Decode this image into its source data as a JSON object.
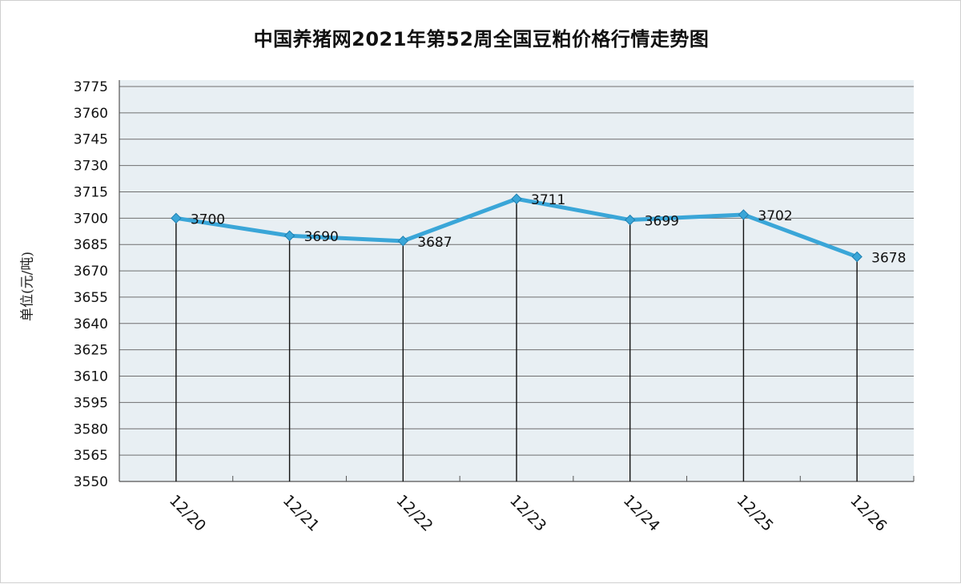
{
  "chart_data": {
    "type": "line",
    "title": "中国养猪网2021年第52周全国豆粕价格行情走势图",
    "ylabel": "单位(元/吨)",
    "xlabel": "",
    "categories": [
      "12/20",
      "12/21",
      "12/22",
      "12/23",
      "12/24",
      "12/25",
      "12/26"
    ],
    "series": [
      {
        "values": [
          3700,
          3690,
          3687,
          3711,
          3699,
          3702,
          3678
        ]
      }
    ],
    "data_labels": [
      "3700",
      "3690",
      "3687",
      "3711",
      "3699",
      "3702",
      "3678"
    ],
    "ylim": [
      3550,
      3775
    ],
    "yticks": [
      3550,
      3565,
      3580,
      3595,
      3610,
      3625,
      3640,
      3655,
      3670,
      3685,
      3700,
      3715,
      3730,
      3745,
      3760,
      3775
    ],
    "grid": true,
    "colors": {
      "line": "#3aa6d8",
      "marker": "#3aa6d8",
      "plot_background": "#e8eff3",
      "gridline": "#6f6f6f",
      "drop_line": "#111111"
    }
  }
}
